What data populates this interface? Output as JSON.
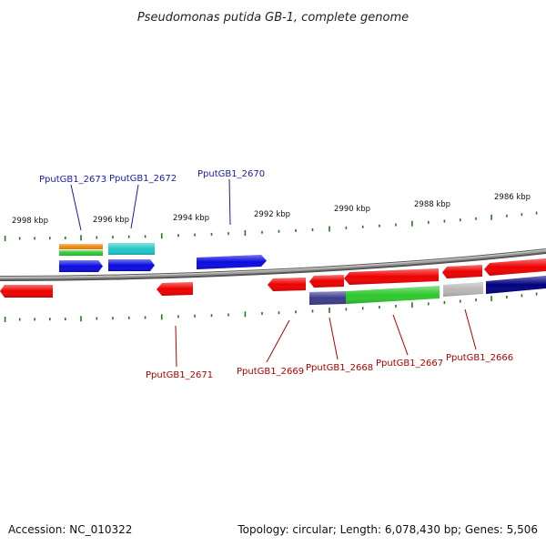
{
  "title": "Pseudomonas putida GB-1, complete genome",
  "footer": {
    "accession": "Accession: NC_010322",
    "summary": "Topology: circular; Length: 6,078,430 bp; Genes: 5,506"
  },
  "scale_labels": [
    "2998 kbp",
    "2996 kbp",
    "2994 kbp",
    "2992 kbp",
    "2990 kbp",
    "2988 kbp",
    "2986 kbp"
  ],
  "colors": {
    "forward_label": "#1a1aa8",
    "reverse_label": "#b00000",
    "tick": "#1f7a1f",
    "backbone": "#777777",
    "red": "#ee0000",
    "blue": "#0a0ae0",
    "cyan": "#20c8c8",
    "orange": "#f08a10",
    "green": "#2ec82e",
    "darkblue": "#000080",
    "slate": "#3c3c8c",
    "gray": "#b8b8b8"
  },
  "forward_genes": [
    "PputGB1_2673",
    "PputGB1_2672",
    "PputGB1_2670"
  ],
  "reverse_genes": [
    "PputGB1_2671",
    "PputGB1_2669",
    "PputGB1_2668",
    "PputGB1_2667",
    "PputGB1_2666"
  ]
}
